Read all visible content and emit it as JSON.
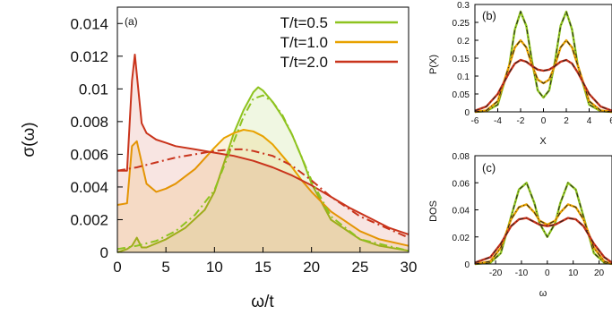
{
  "colors": {
    "green": "#8ec31f",
    "orange": "#e8a200",
    "red": "#c9341c",
    "axis": "#000000"
  },
  "chart_data": [
    {
      "panel_label": "(a)",
      "type": "line",
      "xlabel": "ω/t",
      "ylabel": "σ(ω)",
      "xlim": [
        0,
        30
      ],
      "ylim": [
        0,
        0.015
      ],
      "xticks": [
        "0",
        "5",
        "10",
        "15",
        "20",
        "25",
        "30"
      ],
      "yticks": [
        "0",
        "0.002",
        "0.004",
        "0.006",
        "0.008",
        "0.01",
        "0.012",
        "0.014"
      ],
      "legend_position": "top-right",
      "grid": false,
      "series": [
        {
          "name": "T/t=0.5",
          "color": "green",
          "x": [
            0,
            1,
            1.5,
            2,
            2.5,
            3,
            5,
            7,
            9,
            10,
            11,
            12,
            13,
            14,
            14.5,
            15,
            16,
            17,
            18,
            19,
            20,
            22,
            25,
            27,
            30
          ],
          "y": [
            0,
            0.0002,
            0.0004,
            0.0009,
            0.0003,
            0.0003,
            0.0008,
            0.0015,
            0.0026,
            0.0037,
            0.0055,
            0.0073,
            0.0087,
            0.0098,
            0.0101,
            0.0099,
            0.0092,
            0.0083,
            0.0072,
            0.0058,
            0.0042,
            0.002,
            0.0008,
            0.0004,
            0.0001
          ]
        },
        {
          "name": "T/t=1.0",
          "color": "orange",
          "x": [
            0,
            1,
            1.5,
            2,
            3,
            4,
            5,
            6,
            8,
            10,
            11,
            12,
            13,
            14,
            15,
            16,
            17,
            18,
            19,
            20,
            22,
            25,
            27,
            30
          ],
          "y": [
            0.0029,
            0.003,
            0.0065,
            0.0068,
            0.0042,
            0.0037,
            0.0039,
            0.0042,
            0.0051,
            0.0064,
            0.007,
            0.0073,
            0.0075,
            0.0074,
            0.0071,
            0.0066,
            0.0059,
            0.0052,
            0.0044,
            0.0037,
            0.0025,
            0.0013,
            0.0008,
            0.0004
          ]
        },
        {
          "name": "T/t=2.0",
          "color": "red",
          "x": [
            0,
            1,
            1.5,
            1.8,
            2.5,
            3,
            4,
            5,
            6,
            8,
            10,
            12,
            14,
            16,
            18,
            20,
            22,
            24,
            26,
            28,
            30
          ],
          "y": [
            0.005,
            0.005,
            0.0105,
            0.0121,
            0.0079,
            0.0073,
            0.0069,
            0.0067,
            0.0065,
            0.0063,
            0.0061,
            0.0059,
            0.0056,
            0.0052,
            0.0047,
            0.0041,
            0.0034,
            0.0027,
            0.0021,
            0.0015,
            0.0011
          ]
        }
      ],
      "dashdot_series": [
        {
          "color": "green",
          "x": [
            0,
            2,
            4,
            6,
            8,
            10,
            12,
            13,
            14,
            15,
            16,
            17,
            18,
            20,
            22,
            25,
            30
          ],
          "y": [
            0.0002,
            0.0004,
            0.0007,
            0.0013,
            0.0023,
            0.0038,
            0.0068,
            0.0083,
            0.0094,
            0.0096,
            0.0092,
            0.0084,
            0.0072,
            0.0044,
            0.0022,
            0.0008,
            0.0001
          ]
        },
        {
          "color": "red",
          "x": [
            0,
            2,
            4,
            6,
            8,
            10,
            12,
            13,
            14,
            16,
            18,
            20,
            22,
            25,
            30
          ],
          "y": [
            0.005,
            0.0052,
            0.0055,
            0.0058,
            0.006,
            0.0062,
            0.0063,
            0.0063,
            0.0062,
            0.0059,
            0.0053,
            0.0044,
            0.0034,
            0.0022,
            0.0009
          ]
        }
      ]
    },
    {
      "panel_label": "(b)",
      "type": "line",
      "xlabel": "X",
      "ylabel": "P(X)",
      "xlim": [
        -6,
        6
      ],
      "ylim": [
        0,
        0.3
      ],
      "xticks": [
        "-6",
        "-4",
        "-2",
        "0",
        "2",
        "4",
        "6"
      ],
      "yticks": [
        "0",
        "0.05",
        "0.1",
        "0.15",
        "0.2",
        "0.25",
        "0.3"
      ],
      "series": [
        {
          "color": "green",
          "x": [
            -6,
            -5,
            -4,
            -3,
            -2.5,
            -2,
            -1.5,
            -1,
            -0.5,
            0,
            0.5,
            1,
            1.5,
            2,
            2.5,
            3,
            4,
            5,
            6
          ],
          "y": [
            0,
            0.002,
            0.02,
            0.13,
            0.23,
            0.28,
            0.24,
            0.14,
            0.06,
            0.04,
            0.06,
            0.14,
            0.24,
            0.28,
            0.23,
            0.13,
            0.02,
            0.002,
            0
          ]
        },
        {
          "color": "orange",
          "x": [
            -6,
            -5,
            -4,
            -3,
            -2.5,
            -2,
            -1.5,
            -1,
            -0.5,
            0,
            0.5,
            1,
            1.5,
            2,
            2.5,
            3,
            4,
            5,
            6
          ],
          "y": [
            0,
            0.004,
            0.03,
            0.13,
            0.18,
            0.2,
            0.18,
            0.13,
            0.09,
            0.08,
            0.09,
            0.13,
            0.18,
            0.2,
            0.18,
            0.13,
            0.03,
            0.004,
            0
          ]
        },
        {
          "color": "red",
          "x": [
            -6,
            -5,
            -4,
            -3,
            -2.5,
            -2,
            -1.5,
            -1,
            -0.5,
            0,
            0.5,
            1,
            1.5,
            2,
            2.5,
            3,
            4,
            5,
            6
          ],
          "y": [
            0.003,
            0.015,
            0.05,
            0.11,
            0.135,
            0.145,
            0.14,
            0.128,
            0.118,
            0.115,
            0.118,
            0.128,
            0.14,
            0.145,
            0.135,
            0.11,
            0.05,
            0.015,
            0.003
          ]
        }
      ]
    },
    {
      "panel_label": "(c)",
      "type": "line",
      "xlabel": "ω",
      "ylabel": "DOS",
      "xlim": [
        -28,
        25
      ],
      "ylim": [
        0,
        0.08
      ],
      "xticks": [
        "-20",
        "-10",
        "0",
        "10",
        "20"
      ],
      "yticks": [
        "0",
        "0.02",
        "0.04",
        "0.06",
        "0.08"
      ],
      "series": [
        {
          "color": "green",
          "x": [
            -28,
            -22,
            -18,
            -14,
            -11,
            -8,
            -5,
            -3,
            0,
            3,
            5,
            8,
            11,
            14,
            18,
            22,
            25
          ],
          "y": [
            0,
            0.001,
            0.008,
            0.035,
            0.055,
            0.06,
            0.045,
            0.03,
            0.02,
            0.03,
            0.045,
            0.06,
            0.055,
            0.035,
            0.008,
            0.001,
            0
          ]
        },
        {
          "color": "orange",
          "x": [
            -28,
            -22,
            -18,
            -14,
            -11,
            -8,
            -5,
            -3,
            0,
            3,
            5,
            8,
            11,
            14,
            18,
            22,
            25
          ],
          "y": [
            0,
            0.002,
            0.012,
            0.033,
            0.042,
            0.044,
            0.038,
            0.032,
            0.029,
            0.032,
            0.038,
            0.044,
            0.042,
            0.033,
            0.012,
            0.002,
            0
          ]
        },
        {
          "color": "red",
          "x": [
            -28,
            -22,
            -18,
            -14,
            -11,
            -8,
            -5,
            -3,
            0,
            3,
            5,
            8,
            11,
            14,
            18,
            22,
            25
          ],
          "y": [
            0.001,
            0.005,
            0.015,
            0.028,
            0.033,
            0.034,
            0.031,
            0.029,
            0.028,
            0.029,
            0.031,
            0.034,
            0.033,
            0.028,
            0.015,
            0.005,
            0.001
          ]
        }
      ]
    }
  ]
}
